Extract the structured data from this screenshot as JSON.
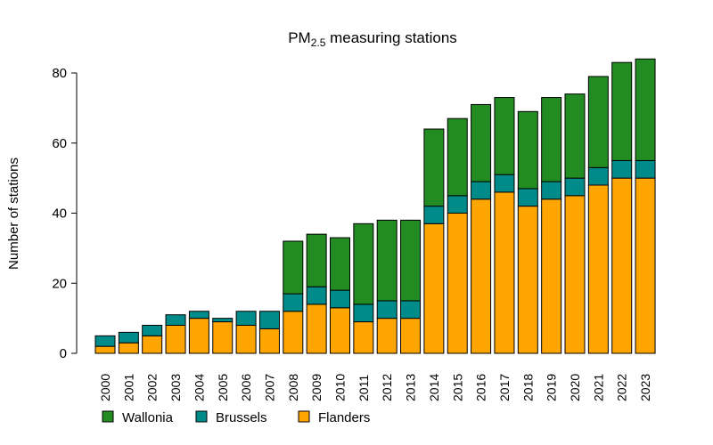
{
  "chart_data": {
    "type": "bar",
    "stacked": true,
    "title": "PM",
    "title_subscript": "2.5",
    "title_rest": " measuring stations",
    "xlabel": "",
    "ylabel": "Number of stations",
    "ylim": [
      0,
      85
    ],
    "yticks": [
      0,
      20,
      40,
      60,
      80
    ],
    "grid": false,
    "legend_position": "bottom-left",
    "categories": [
      "2000",
      "2001",
      "2002",
      "2003",
      "2004",
      "2005",
      "2006",
      "2007",
      "2008",
      "2009",
      "2010",
      "2011",
      "2012",
      "2013",
      "2014",
      "2015",
      "2016",
      "2017",
      "2018",
      "2019",
      "2020",
      "2021",
      "2022",
      "2023"
    ],
    "series": [
      {
        "name": "Flanders",
        "color": "#FFA500",
        "values": [
          2,
          3,
          5,
          8,
          10,
          9,
          8,
          7,
          12,
          14,
          13,
          9,
          10,
          10,
          37,
          40,
          44,
          46,
          42,
          44,
          45,
          48,
          50,
          50
        ]
      },
      {
        "name": "Brussels",
        "color": "#008B8B",
        "values": [
          3,
          3,
          3,
          3,
          2,
          1,
          4,
          5,
          5,
          5,
          5,
          5,
          5,
          5,
          5,
          5,
          5,
          5,
          5,
          5,
          5,
          5,
          5,
          5
        ]
      },
      {
        "name": "Wallonia",
        "color": "#228B22",
        "values": [
          0,
          0,
          0,
          0,
          0,
          0,
          0,
          0,
          15,
          15,
          15,
          23,
          23,
          23,
          22,
          22,
          22,
          22,
          22,
          24,
          24,
          26,
          28,
          29
        ]
      }
    ],
    "legend_order": [
      "Wallonia",
      "Brussels",
      "Flanders"
    ]
  }
}
